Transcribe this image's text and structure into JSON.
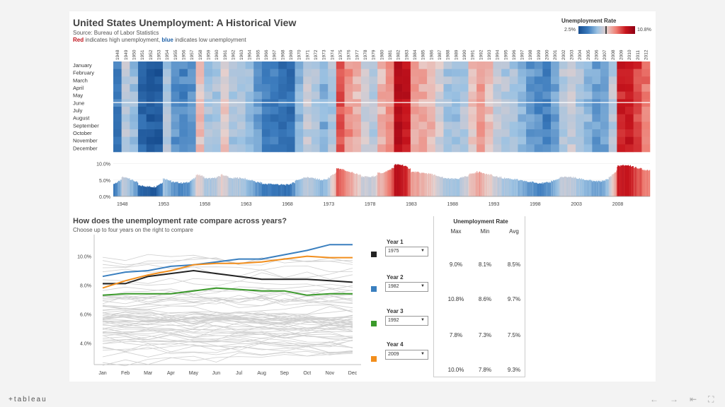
{
  "header": {
    "title": "United States Unemployment: A Historical View",
    "source": "Source: Bureau of Labor Statistics",
    "explain_red": "Red",
    "explain_mid": " indicates high unemployment, ",
    "explain_blue": "blue",
    "explain_end": " indicates low unemployment"
  },
  "legend": {
    "title": "Unemployment Rate",
    "min": "2.5%",
    "max": "10.8%",
    "colors": [
      "#164c8f",
      "#3b7bbd",
      "#9cc2e2",
      "#e8d0cc",
      "#ee7d72",
      "#c8151d",
      "#8e0013"
    ]
  },
  "compare": {
    "title": "How does the unemployment rate compare across years?",
    "subtitle": "Choose up to four years on the right to compare",
    "slots": [
      {
        "label": "Year 1",
        "value": "1975",
        "color": "#222222"
      },
      {
        "label": "Year 2",
        "value": "1982",
        "color": "#3a7fbf"
      },
      {
        "label": "Year 3",
        "value": "1992",
        "color": "#3a9a2a"
      },
      {
        "label": "Year 4",
        "value": "2009",
        "color": "#f28e1c"
      }
    ]
  },
  "stats": {
    "title": "Unemployment Rate",
    "headers": [
      "Max",
      "Min",
      "Avg"
    ],
    "rows": [
      [
        "9.0%",
        "8.1%",
        "8.5%"
      ],
      [
        "10.8%",
        "8.6%",
        "9.7%"
      ],
      [
        "7.8%",
        "7.3%",
        "7.5%"
      ],
      [
        "10.0%",
        "7.8%",
        "9.3%"
      ]
    ]
  },
  "footer": {
    "logo": "+tableau"
  },
  "chart_data": [
    {
      "type": "heatmap",
      "title": "",
      "months": [
        "January",
        "February",
        "March",
        "April",
        "May",
        "June",
        "July",
        "August",
        "September",
        "October",
        "November",
        "December"
      ],
      "years": [
        1948,
        1949,
        1950,
        1951,
        1952,
        1953,
        1954,
        1955,
        1956,
        1957,
        1958,
        1959,
        1960,
        1961,
        1962,
        1963,
        1964,
        1965,
        1966,
        1967,
        1968,
        1969,
        1970,
        1971,
        1972,
        1973,
        1974,
        1975,
        1976,
        1977,
        1978,
        1979,
        1980,
        1981,
        1982,
        1983,
        1984,
        1985,
        1986,
        1987,
        1988,
        1989,
        1990,
        1991,
        1992,
        1993,
        1994,
        1995,
        1996,
        1997,
        1998,
        1999,
        2000,
        2001,
        2002,
        2003,
        2004,
        2005,
        2006,
        2007,
        2008,
        2009,
        2010,
        2011,
        2012
      ],
      "annual_avg": [
        3.8,
        5.9,
        5.3,
        3.3,
        3.0,
        2.9,
        5.5,
        4.4,
        4.1,
        4.3,
        6.8,
        5.5,
        5.5,
        6.7,
        5.5,
        5.7,
        5.2,
        4.5,
        3.8,
        3.8,
        3.6,
        3.5,
        4.9,
        5.9,
        5.6,
        4.9,
        5.6,
        8.5,
        7.7,
        7.1,
        6.1,
        5.8,
        7.1,
        7.6,
        9.7,
        9.6,
        7.5,
        7.2,
        7.0,
        6.2,
        5.5,
        5.3,
        5.6,
        6.8,
        7.5,
        6.9,
        6.1,
        5.6,
        5.4,
        4.9,
        4.5,
        4.2,
        4.0,
        4.7,
        5.8,
        6.0,
        5.5,
        5.1,
        4.6,
        4.6,
        5.8,
        9.3,
        9.6,
        8.9,
        8.1
      ],
      "color_range": [
        2.5,
        10.8
      ]
    },
    {
      "type": "area",
      "x_ticks": [
        "1948",
        "1953",
        "1958",
        "1963",
        "1968",
        "1973",
        "1978",
        "1983",
        "1988",
        "1993",
        "1998",
        "2003",
        "2008"
      ],
      "y_ticks": [
        "0.0%",
        "5.0%",
        "10.0%"
      ],
      "ylim": [
        0,
        10.8
      ]
    },
    {
      "type": "line",
      "categories": [
        "Jan",
        "Feb",
        "Mar",
        "Apr",
        "May",
        "Jun",
        "Jul",
        "Aug",
        "Sep",
        "Oct",
        "Nov",
        "Dec"
      ],
      "y_ticks": [
        "4.0%",
        "6.0%",
        "8.0%",
        "10.0%"
      ],
      "ylim": [
        2.5,
        11.2
      ],
      "series": [
        {
          "name": "1975",
          "color": "#222222",
          "values": [
            8.1,
            8.1,
            8.6,
            8.8,
            9.0,
            8.8,
            8.6,
            8.4,
            8.4,
            8.4,
            8.3,
            8.2
          ]
        },
        {
          "name": "1982",
          "color": "#3a7fbf",
          "values": [
            8.6,
            8.9,
            9.0,
            9.3,
            9.4,
            9.6,
            9.8,
            9.8,
            10.1,
            10.4,
            10.8,
            10.8
          ]
        },
        {
          "name": "1992",
          "color": "#3a9a2a",
          "values": [
            7.3,
            7.4,
            7.4,
            7.4,
            7.6,
            7.8,
            7.7,
            7.6,
            7.6,
            7.3,
            7.4,
            7.4
          ]
        },
        {
          "name": "2009",
          "color": "#f28e1c",
          "values": [
            7.8,
            8.3,
            8.7,
            9.0,
            9.4,
            9.5,
            9.5,
            9.6,
            9.8,
            10.0,
            9.9,
            9.9
          ]
        }
      ]
    }
  ]
}
